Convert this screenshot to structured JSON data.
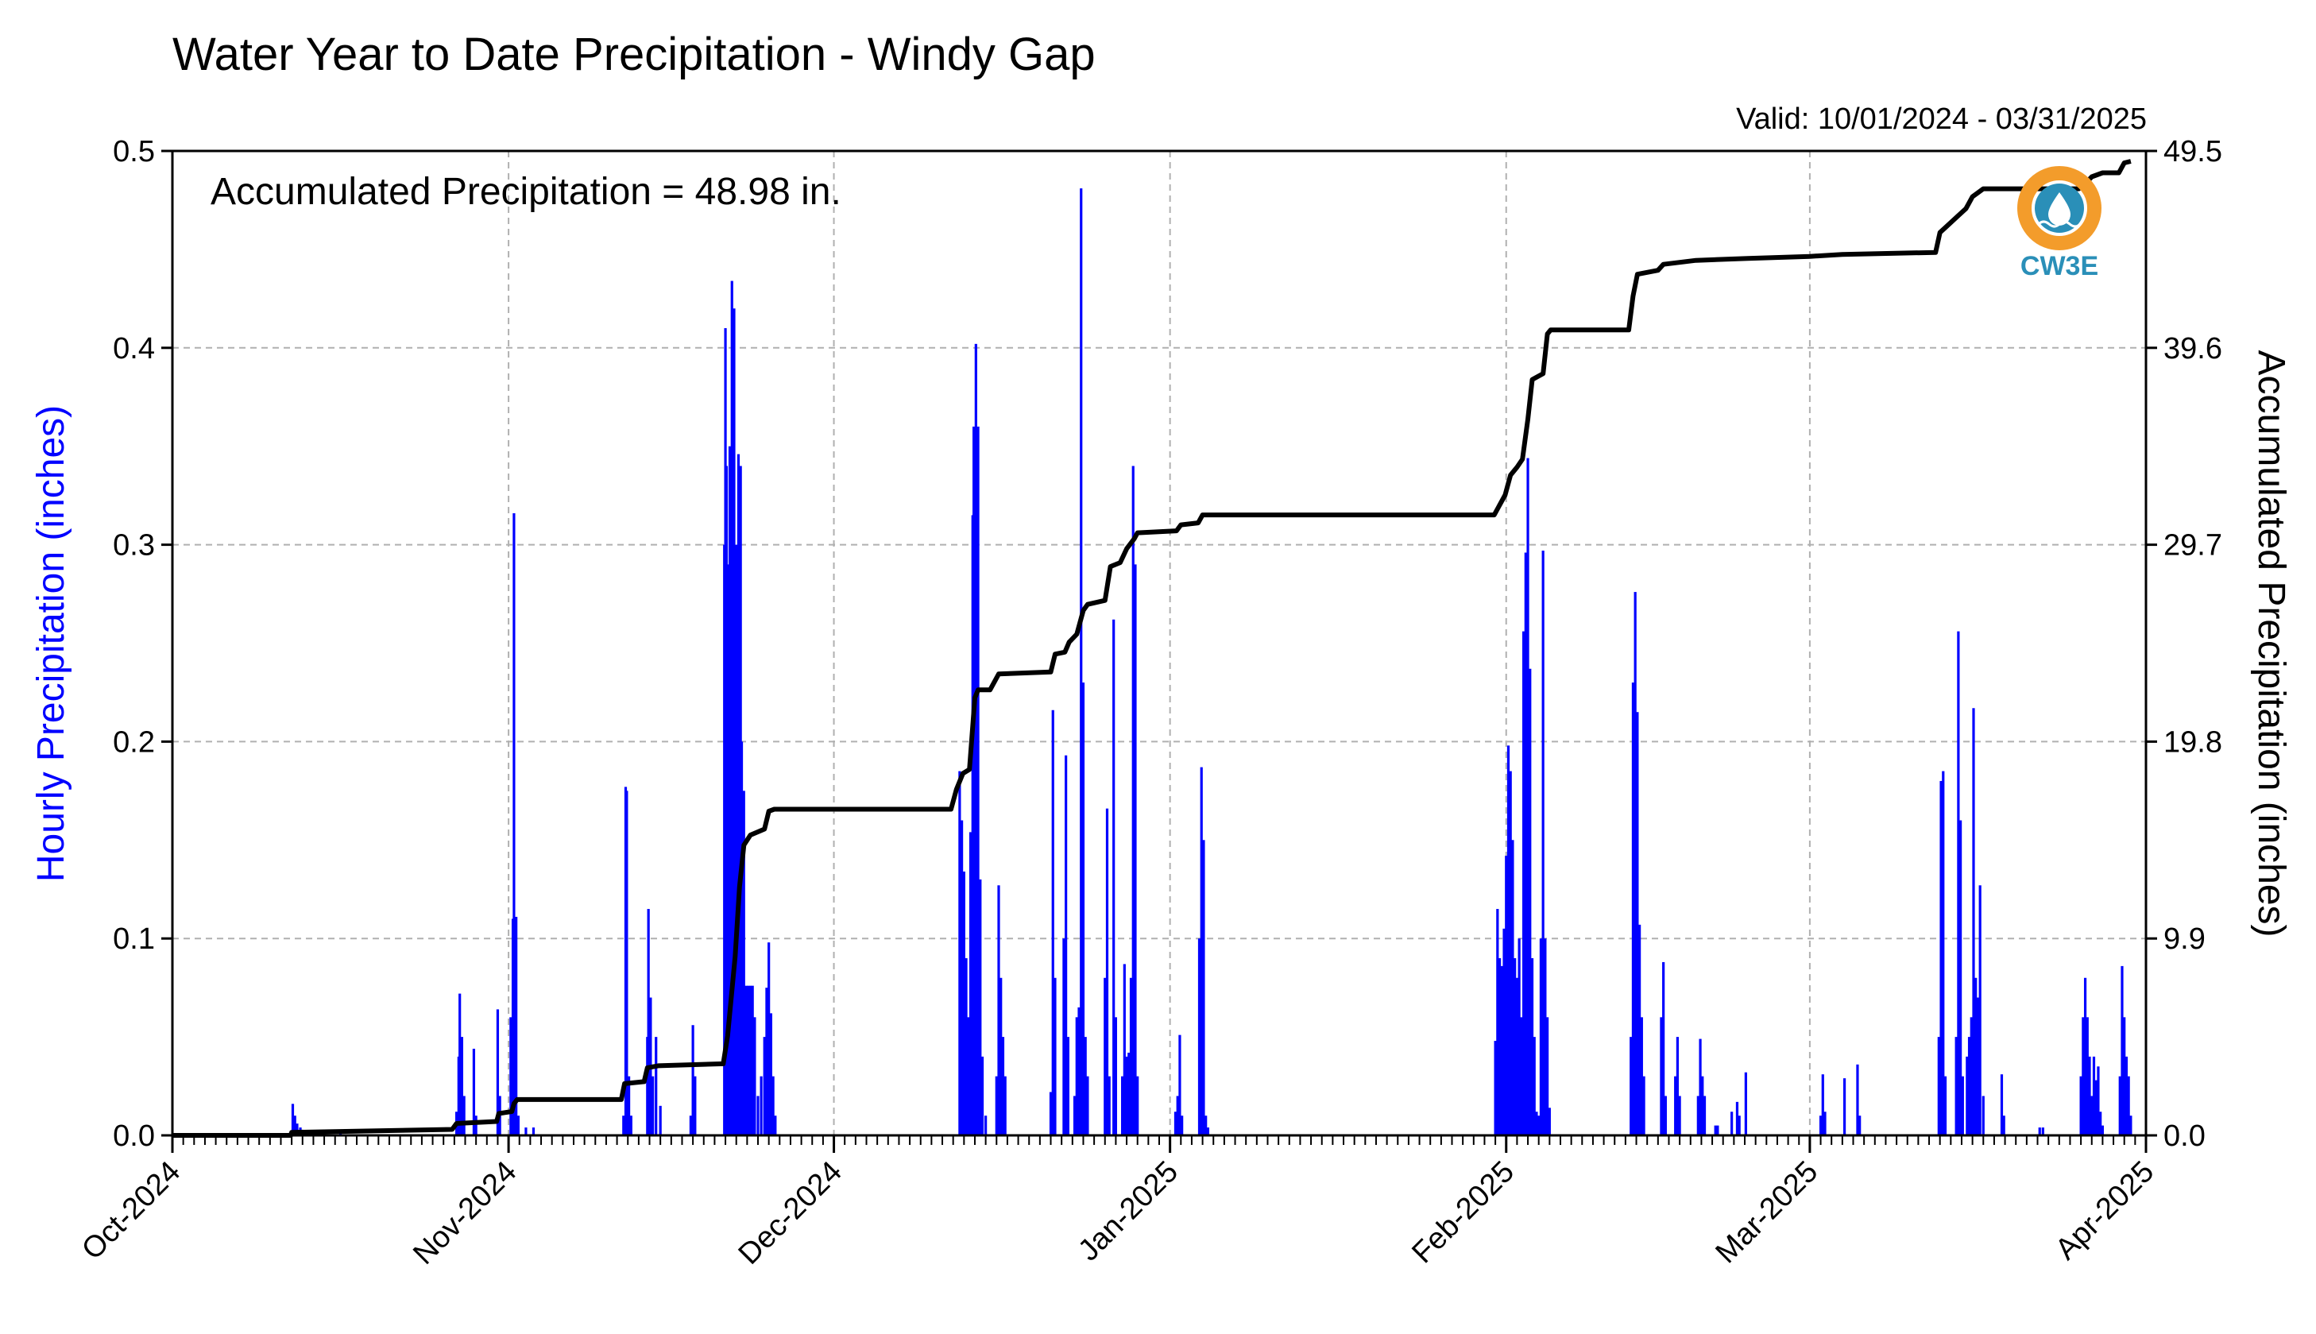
{
  "chart_data": {
    "type": "bar",
    "title": "Water Year to Date Precipitation - Windy Gap",
    "subtitle": "Valid: 10/01/2024 - 03/31/2025",
    "annotation": "Accumulated Precipitation = 48.98 in.",
    "logo_text": "CW3E",
    "ylabel": "Hourly Precipitation (inches)",
    "y2label": "Accumulated Precipitation (inches)",
    "ylim": [
      0,
      0.5
    ],
    "y2lim": [
      0,
      49.5
    ],
    "yticks": [
      "0.0",
      "0.1",
      "0.2",
      "0.3",
      "0.4",
      "0.5"
    ],
    "y2ticks": [
      "0.0",
      "9.9",
      "19.8",
      "29.7",
      "39.6",
      "49.5"
    ],
    "xlim_days": [
      0,
      182
    ],
    "xticks": [
      {
        "label": "Oct-2024",
        "day": 0
      },
      {
        "label": "Nov-2024",
        "day": 31
      },
      {
        "label": "Dec-2024",
        "day": 61
      },
      {
        "label": "Jan-2025",
        "day": 92
      },
      {
        "label": "Feb-2025",
        "day": 123
      },
      {
        "label": "Mar-2025",
        "day": 151
      },
      {
        "label": "Apr-2025",
        "day": 182
      }
    ],
    "grid": true,
    "colors": {
      "hourly": "#0000ff",
      "accumulated": "#000000",
      "grid": "#b0b0b0",
      "ylabel_left": "#0000ff",
      "logo_ring": "#f39c2b",
      "logo_core": "#2a8fb8"
    },
    "series": [
      {
        "name": "Hourly Precipitation (inches)",
        "type": "bar",
        "points": [
          [
            11.1,
            0.016
          ],
          [
            11.3,
            0.01
          ],
          [
            11.5,
            0.006
          ],
          [
            11.8,
            0.004
          ],
          [
            15.5,
            0.003
          ],
          [
            26.2,
            0.012
          ],
          [
            26.4,
            0.04
          ],
          [
            26.5,
            0.072
          ],
          [
            26.7,
            0.05
          ],
          [
            26.9,
            0.02
          ],
          [
            27.8,
            0.044
          ],
          [
            28.0,
            0.01
          ],
          [
            30.0,
            0.064
          ],
          [
            30.2,
            0.02
          ],
          [
            31.2,
            0.06
          ],
          [
            31.4,
            0.11
          ],
          [
            31.5,
            0.316
          ],
          [
            31.7,
            0.111
          ],
          [
            31.9,
            0.01
          ],
          [
            32.6,
            0.004
          ],
          [
            33.3,
            0.004
          ],
          [
            41.6,
            0.01
          ],
          [
            41.8,
            0.177
          ],
          [
            41.9,
            0.175
          ],
          [
            42.1,
            0.03
          ],
          [
            42.3,
            0.01
          ],
          [
            43.8,
            0.05
          ],
          [
            43.9,
            0.115
          ],
          [
            44.1,
            0.07
          ],
          [
            44.3,
            0.03
          ],
          [
            44.6,
            0.05
          ],
          [
            45.0,
            0.015
          ],
          [
            47.8,
            0.01
          ],
          [
            48.0,
            0.056
          ],
          [
            48.2,
            0.03
          ],
          [
            50.9,
            0.3
          ],
          [
            51.0,
            0.41
          ],
          [
            51.1,
            0.34
          ],
          [
            51.3,
            0.29
          ],
          [
            51.4,
            0.35
          ],
          [
            51.6,
            0.434
          ],
          [
            51.8,
            0.42
          ],
          [
            52.0,
            0.3
          ],
          [
            52.2,
            0.346
          ],
          [
            52.4,
            0.34
          ],
          [
            52.5,
            0.2
          ],
          [
            52.7,
            0.175
          ],
          [
            52.9,
            0.076
          ],
          [
            53.1,
            0.076
          ],
          [
            53.3,
            0.076
          ],
          [
            53.5,
            0.076
          ],
          [
            53.7,
            0.06
          ],
          [
            54.0,
            0.02
          ],
          [
            54.3,
            0.03
          ],
          [
            54.6,
            0.05
          ],
          [
            54.8,
            0.075
          ],
          [
            55.0,
            0.098
          ],
          [
            55.2,
            0.062
          ],
          [
            55.4,
            0.03
          ],
          [
            55.6,
            0.01
          ],
          [
            72.6,
            0.185
          ],
          [
            72.8,
            0.16
          ],
          [
            73.0,
            0.134
          ],
          [
            73.2,
            0.09
          ],
          [
            73.4,
            0.06
          ],
          [
            73.6,
            0.154
          ],
          [
            73.8,
            0.315
          ],
          [
            73.9,
            0.36
          ],
          [
            74.1,
            0.402
          ],
          [
            74.3,
            0.36
          ],
          [
            74.5,
            0.13
          ],
          [
            74.7,
            0.04
          ],
          [
            75.0,
            0.01
          ],
          [
            76.0,
            0.03
          ],
          [
            76.2,
            0.127
          ],
          [
            76.4,
            0.08
          ],
          [
            76.6,
            0.05
          ],
          [
            76.8,
            0.03
          ],
          [
            81.0,
            0.022
          ],
          [
            81.2,
            0.216
          ],
          [
            81.4,
            0.08
          ],
          [
            82.2,
            0.1
          ],
          [
            82.4,
            0.193
          ],
          [
            82.6,
            0.05
          ],
          [
            83.2,
            0.02
          ],
          [
            83.4,
            0.06
          ],
          [
            83.6,
            0.065
          ],
          [
            83.8,
            0.481
          ],
          [
            84.0,
            0.23
          ],
          [
            84.2,
            0.05
          ],
          [
            84.4,
            0.03
          ],
          [
            86.0,
            0.08
          ],
          [
            86.2,
            0.166
          ],
          [
            86.4,
            0.03
          ],
          [
            86.8,
            0.262
          ],
          [
            87.0,
            0.06
          ],
          [
            87.6,
            0.03
          ],
          [
            87.8,
            0.087
          ],
          [
            88.0,
            0.04
          ],
          [
            88.2,
            0.042
          ],
          [
            88.4,
            0.08
          ],
          [
            88.6,
            0.34
          ],
          [
            88.8,
            0.29
          ],
          [
            89.0,
            0.03
          ],
          [
            92.5,
            0.012
          ],
          [
            92.7,
            0.02
          ],
          [
            92.9,
            0.051
          ],
          [
            93.1,
            0.01
          ],
          [
            94.7,
            0.1
          ],
          [
            94.9,
            0.187
          ],
          [
            95.1,
            0.15
          ],
          [
            95.3,
            0.01
          ],
          [
            95.5,
            0.004
          ],
          [
            122.0,
            0.048
          ],
          [
            122.2,
            0.115
          ],
          [
            122.4,
            0.09
          ],
          [
            122.6,
            0.086
          ],
          [
            122.8,
            0.105
          ],
          [
            123.0,
            0.142
          ],
          [
            123.2,
            0.198
          ],
          [
            123.4,
            0.185
          ],
          [
            123.6,
            0.15
          ],
          [
            123.8,
            0.09
          ],
          [
            124.0,
            0.08
          ],
          [
            124.2,
            0.1
          ],
          [
            124.4,
            0.06
          ],
          [
            124.6,
            0.256
          ],
          [
            124.8,
            0.296
          ],
          [
            125.0,
            0.344
          ],
          [
            125.2,
            0.237
          ],
          [
            125.4,
            0.09
          ],
          [
            125.6,
            0.05
          ],
          [
            125.8,
            0.012
          ],
          [
            126.0,
            0.01
          ],
          [
            126.2,
            0.1
          ],
          [
            126.4,
            0.297
          ],
          [
            126.6,
            0.1
          ],
          [
            126.8,
            0.06
          ],
          [
            127.0,
            0.014
          ],
          [
            134.5,
            0.05
          ],
          [
            134.7,
            0.23
          ],
          [
            134.9,
            0.276
          ],
          [
            135.1,
            0.215
          ],
          [
            135.3,
            0.107
          ],
          [
            135.5,
            0.06
          ],
          [
            135.7,
            0.03
          ],
          [
            137.3,
            0.06
          ],
          [
            137.5,
            0.088
          ],
          [
            137.7,
            0.02
          ],
          [
            138.6,
            0.03
          ],
          [
            138.8,
            0.05
          ],
          [
            139.0,
            0.02
          ],
          [
            140.7,
            0.02
          ],
          [
            140.9,
            0.049
          ],
          [
            141.1,
            0.03
          ],
          [
            141.3,
            0.02
          ],
          [
            142.3,
            0.005
          ],
          [
            142.5,
            0.005
          ],
          [
            143.8,
            0.012
          ],
          [
            144.3,
            0.017
          ],
          [
            144.5,
            0.01
          ],
          [
            145.1,
            0.032
          ],
          [
            152.0,
            0.01
          ],
          [
            152.2,
            0.031
          ],
          [
            152.4,
            0.012
          ],
          [
            154.2,
            0.029
          ],
          [
            155.4,
            0.036
          ],
          [
            155.6,
            0.01
          ],
          [
            162.9,
            0.05
          ],
          [
            163.1,
            0.18
          ],
          [
            163.3,
            0.185
          ],
          [
            163.5,
            0.03
          ],
          [
            164.5,
            0.05
          ],
          [
            164.7,
            0.256
          ],
          [
            164.9,
            0.16
          ],
          [
            165.1,
            0.03
          ],
          [
            165.5,
            0.04
          ],
          [
            165.7,
            0.05
          ],
          [
            165.9,
            0.06
          ],
          [
            166.1,
            0.217
          ],
          [
            166.3,
            0.08
          ],
          [
            166.5,
            0.07
          ],
          [
            166.7,
            0.127
          ],
          [
            167.0,
            0.02
          ],
          [
            168.7,
            0.031
          ],
          [
            168.9,
            0.01
          ],
          [
            172.2,
            0.004
          ],
          [
            172.5,
            0.004
          ],
          [
            176.0,
            0.03
          ],
          [
            176.2,
            0.06
          ],
          [
            176.4,
            0.08
          ],
          [
            176.6,
            0.06
          ],
          [
            176.8,
            0.04
          ],
          [
            177.0,
            0.02
          ],
          [
            177.2,
            0.04
          ],
          [
            177.4,
            0.028
          ],
          [
            177.6,
            0.035
          ],
          [
            177.8,
            0.012
          ],
          [
            178.0,
            0.005
          ],
          [
            179.6,
            0.03
          ],
          [
            179.8,
            0.086
          ],
          [
            180.0,
            0.06
          ],
          [
            180.2,
            0.04
          ],
          [
            180.4,
            0.03
          ],
          [
            180.6,
            0.01
          ]
        ]
      },
      {
        "name": "Accumulated Precipitation (inches)",
        "type": "line",
        "points": [
          [
            0,
            0
          ],
          [
            10.9,
            0
          ],
          [
            11.0,
            0.15
          ],
          [
            25.8,
            0.3
          ],
          [
            26.2,
            0.6
          ],
          [
            29.9,
            0.7
          ],
          [
            30.1,
            1.1
          ],
          [
            31.3,
            1.2
          ],
          [
            31.5,
            1.6
          ],
          [
            31.8,
            1.8
          ],
          [
            33.5,
            1.8
          ],
          [
            41.4,
            1.8
          ],
          [
            41.7,
            2.6
          ],
          [
            43.5,
            2.7
          ],
          [
            43.8,
            3.4
          ],
          [
            44.8,
            3.5
          ],
          [
            50.8,
            3.6
          ],
          [
            51.2,
            5.0
          ],
          [
            51.9,
            9.0
          ],
          [
            52.3,
            12.5
          ],
          [
            52.7,
            14.6
          ],
          [
            53.3,
            15.1
          ],
          [
            54.6,
            15.4
          ],
          [
            55.0,
            16.3
          ],
          [
            55.5,
            16.4
          ],
          [
            71.8,
            16.4
          ],
          [
            72.3,
            17.4
          ],
          [
            72.9,
            18.2
          ],
          [
            73.5,
            18.4
          ],
          [
            74.0,
            22.0
          ],
          [
            74.3,
            22.4
          ],
          [
            75.4,
            22.4
          ],
          [
            76.2,
            23.2
          ],
          [
            81.0,
            23.3
          ],
          [
            81.4,
            24.2
          ],
          [
            82.3,
            24.3
          ],
          [
            82.7,
            24.8
          ],
          [
            83.4,
            25.2
          ],
          [
            84.0,
            26.4
          ],
          [
            84.4,
            26.7
          ],
          [
            86.0,
            26.9
          ],
          [
            86.5,
            28.6
          ],
          [
            87.4,
            28.8
          ],
          [
            88.0,
            29.5
          ],
          [
            88.7,
            30.0
          ],
          [
            89.0,
            30.3
          ],
          [
            92.6,
            30.4
          ],
          [
            93.0,
            30.7
          ],
          [
            94.6,
            30.8
          ],
          [
            95.0,
            31.2
          ],
          [
            121.9,
            31.2
          ],
          [
            122.3,
            31.6
          ],
          [
            122.9,
            32.2
          ],
          [
            123.4,
            33.2
          ],
          [
            124.0,
            33.6
          ],
          [
            124.5,
            34.0
          ],
          [
            125.0,
            36.0
          ],
          [
            125.4,
            38.0
          ],
          [
            126.4,
            38.3
          ],
          [
            126.8,
            40.3
          ],
          [
            127.1,
            40.5
          ],
          [
            134.3,
            40.5
          ],
          [
            134.7,
            42.2
          ],
          [
            135.1,
            43.3
          ],
          [
            137.0,
            43.5
          ],
          [
            137.5,
            43.8
          ],
          [
            140.5,
            44.0
          ],
          [
            145.3,
            44.1
          ],
          [
            151.0,
            44.2
          ],
          [
            154.0,
            44.3
          ],
          [
            162.6,
            44.4
          ],
          [
            163.0,
            45.4
          ],
          [
            163.6,
            45.7
          ],
          [
            164.6,
            46.2
          ],
          [
            165.4,
            46.6
          ],
          [
            166.0,
            47.2
          ],
          [
            166.5,
            47.4
          ],
          [
            167.0,
            47.6
          ],
          [
            175.8,
            47.6
          ],
          [
            176.3,
            47.8
          ],
          [
            177.0,
            48.2
          ],
          [
            178.0,
            48.4
          ],
          [
            179.5,
            48.4
          ],
          [
            180.0,
            48.9
          ],
          [
            180.6,
            48.98
          ]
        ]
      }
    ]
  }
}
